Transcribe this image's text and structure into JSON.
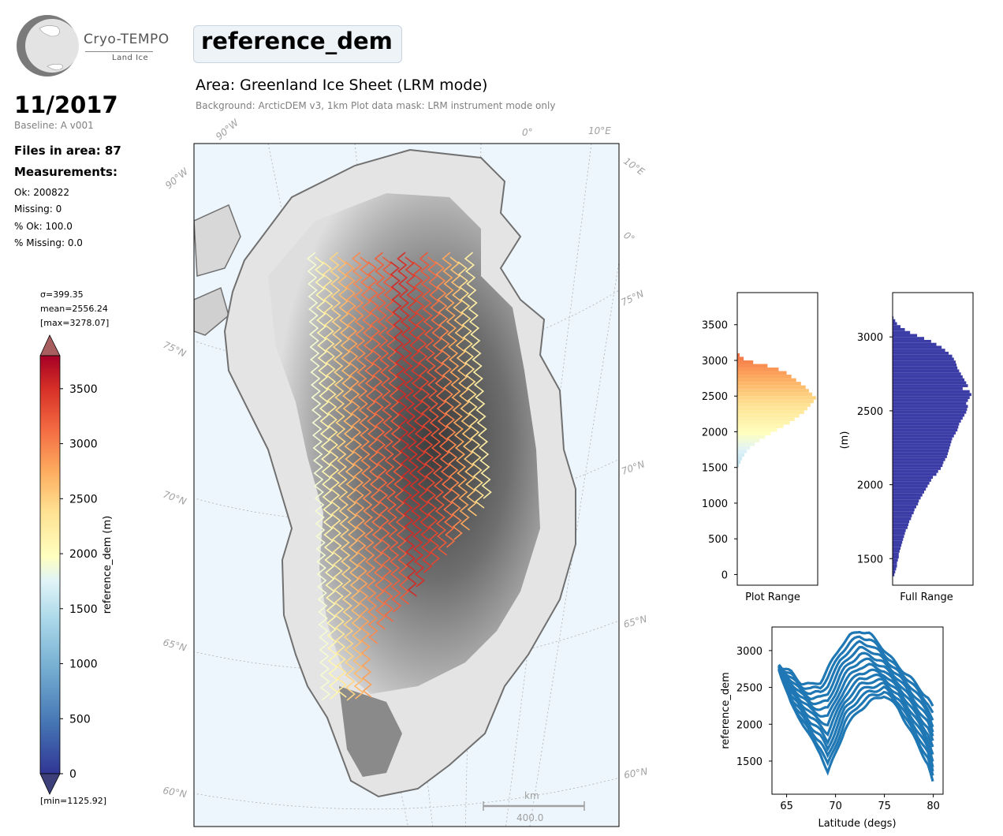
{
  "logo": {
    "name": "Cryo-TEMPO",
    "sub": "Land Ice"
  },
  "header": {
    "period": "11/2017",
    "baseline": "Baseline: A v001",
    "files": "Files in area: 87",
    "measurements_title": "Measurements:",
    "stats": [
      "Ok: 200822",
      "Missing: 0",
      "% Ok: 100.0",
      "% Missing: 0.0"
    ]
  },
  "title": "reference_dem",
  "area_title": "Area: Greenland Ice Sheet (LRM mode)",
  "area_subtitle": "Background: ArcticDEM v3, 1km   Plot data mask: LRM instrument mode only",
  "colorbar": {
    "label": "reference_dem (m)",
    "sigma": "σ=399.35",
    "mean": "mean=2556.24",
    "max": "[max=3278.07]",
    "min": "[min=1125.92]",
    "range": [
      0,
      3800
    ],
    "ticks": [
      0,
      500,
      1000,
      1500,
      2000,
      2500,
      3000,
      3500
    ]
  },
  "map": {
    "lat_labels": [
      "75°N",
      "70°N",
      "65°N",
      "60°N"
    ],
    "lon_labels": [
      "90°W",
      "90°W",
      "0°",
      "10°E",
      "10°E",
      "0°"
    ],
    "scalebar": {
      "unit": "km",
      "value": "400.0"
    },
    "colors": {
      "ocean": "#eef6fd",
      "coast": "#707070",
      "grid": "#b0b0b0"
    }
  },
  "chart_data": [
    {
      "type": "histogram",
      "orientation": "horizontal",
      "xlabel": "Plot Range",
      "ylim": [
        -150,
        3950
      ],
      "yticks": [
        0,
        500,
        1000,
        1500,
        2000,
        2500,
        3000,
        3500
      ],
      "bins_start": 1500,
      "bin_width": 50,
      "counts": [
        2,
        4,
        6,
        9,
        12,
        16,
        22,
        28,
        35,
        42,
        50,
        58,
        66,
        72,
        78,
        84,
        88,
        92,
        96,
        99,
        94,
        90,
        86,
        80,
        74,
        68,
        62,
        52,
        38,
        20,
        8,
        3
      ],
      "colormap": "RdYlBu_r"
    },
    {
      "type": "histogram",
      "orientation": "horizontal",
      "xlabel": "Full Range",
      "ylabel": "(m)",
      "ylim": [
        1320,
        3300
      ],
      "yticks": [
        1500,
        2000,
        2500,
        3000
      ],
      "bins_start": 1380,
      "bin_width": 20,
      "counts": [
        2,
        3,
        4,
        5,
        5,
        6,
        7,
        7,
        8,
        9,
        10,
        11,
        12,
        13,
        14,
        15,
        17,
        18,
        19,
        21,
        22,
        24,
        25,
        27,
        29,
        30,
        32,
        34,
        36,
        38,
        40,
        42,
        44,
        46,
        50,
        52,
        55,
        57,
        58,
        60,
        62,
        63,
        64,
        65,
        66,
        67,
        68,
        70,
        72,
        74,
        75,
        76,
        78,
        80,
        82,
        84,
        85,
        86,
        84,
        86,
        88,
        90,
        88,
        80,
        86,
        84,
        82,
        80,
        78,
        76,
        74,
        73,
        72,
        70,
        68,
        64,
        60,
        56,
        50,
        44,
        36,
        28,
        20,
        14,
        9,
        5,
        3,
        1
      ],
      "color": "#3b3ca6"
    },
    {
      "type": "scatter",
      "xlabel": "Latitude (degs)",
      "ylabel": "reference_dem",
      "xlim": [
        63.5,
        81
      ],
      "ylim": [
        1050,
        3320
      ],
      "xticks": [
        65,
        70,
        75,
        80
      ],
      "yticks": [
        1500,
        2000,
        2500,
        3000
      ],
      "color": "#1f77b4",
      "upper_envelope": [
        [
          64.2,
          2790
        ],
        [
          65.5,
          2700
        ],
        [
          66.5,
          2560
        ],
        [
          67.5,
          2530
        ],
        [
          68.5,
          2580
        ],
        [
          69.5,
          2820
        ],
        [
          70.5,
          3060
        ],
        [
          71.5,
          3200
        ],
        [
          72.5,
          3275
        ],
        [
          73.5,
          3220
        ],
        [
          74.5,
          3090
        ],
        [
          75.5,
          2920
        ],
        [
          76.5,
          2780
        ],
        [
          77.5,
          2650
        ],
        [
          78.5,
          2500
        ],
        [
          79.5,
          2350
        ],
        [
          80.1,
          2180
        ]
      ],
      "lower_envelope": [
        [
          64.2,
          2760
        ],
        [
          65.5,
          2250
        ],
        [
          66.5,
          2050
        ],
        [
          67.5,
          1800
        ],
        [
          68.5,
          1600
        ],
        [
          69.2,
          1340
        ],
        [
          70.0,
          1600
        ],
        [
          71.0,
          1950
        ],
        [
          72.5,
          2200
        ],
        [
          73.5,
          2300
        ],
        [
          75.0,
          2400
        ],
        [
          76.5,
          2200
        ],
        [
          77.5,
          1950
        ],
        [
          78.5,
          1700
        ],
        [
          79.5,
          1450
        ],
        [
          80.1,
          1120
        ]
      ]
    }
  ]
}
